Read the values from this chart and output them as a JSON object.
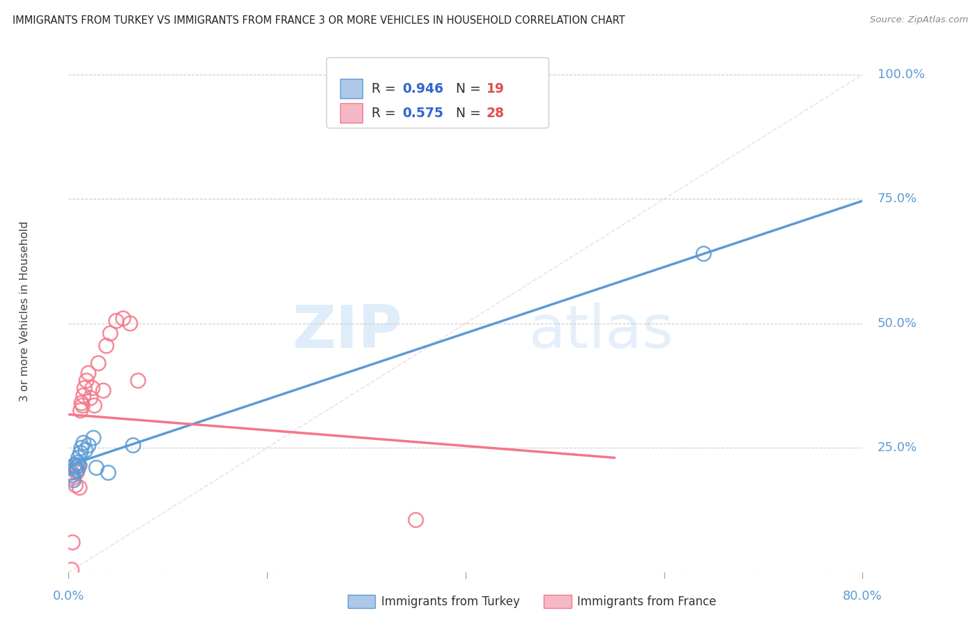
{
  "title": "IMMIGRANTS FROM TURKEY VS IMMIGRANTS FROM FRANCE 3 OR MORE VEHICLES IN HOUSEHOLD CORRELATION CHART",
  "source": "Source: ZipAtlas.com",
  "ylabel": "3 or more Vehicles in Household",
  "xlim": [
    0.0,
    0.8
  ],
  "ylim": [
    0.0,
    1.05
  ],
  "turkey_color": "#5b9bd5",
  "france_color": "#f4768a",
  "turkey_R": "0.946",
  "turkey_N": "19",
  "france_R": "0.575",
  "france_N": "28",
  "legend_label_turkey": "Immigrants from Turkey",
  "legend_label_france": "Immigrants from France",
  "watermark_zip": "ZIP",
  "watermark_atlas": "atlas",
  "background_color": "#ffffff",
  "grid_color": "#cccccc",
  "label_color": "#5b9bd5",
  "title_color": "#222222",
  "source_color": "#888888",
  "turkey_x": [
    0.003,
    0.004,
    0.005,
    0.006,
    0.007,
    0.008,
    0.009,
    0.01,
    0.011,
    0.012,
    0.013,
    0.015,
    0.017,
    0.02,
    0.025,
    0.028,
    0.04,
    0.065,
    0.64
  ],
  "turkey_y": [
    0.2,
    0.195,
    0.185,
    0.215,
    0.21,
    0.205,
    0.22,
    0.23,
    0.215,
    0.24,
    0.25,
    0.26,
    0.245,
    0.255,
    0.27,
    0.21,
    0.2,
    0.255,
    0.64
  ],
  "france_x": [
    0.003,
    0.004,
    0.005,
    0.006,
    0.007,
    0.008,
    0.009,
    0.01,
    0.011,
    0.012,
    0.013,
    0.014,
    0.015,
    0.016,
    0.018,
    0.02,
    0.022,
    0.024,
    0.026,
    0.03,
    0.035,
    0.038,
    0.042,
    0.048,
    0.055,
    0.062,
    0.07,
    0.35
  ],
  "france_y": [
    0.005,
    0.06,
    0.19,
    0.215,
    0.175,
    0.2,
    0.205,
    0.215,
    0.17,
    0.325,
    0.34,
    0.335,
    0.355,
    0.37,
    0.385,
    0.4,
    0.35,
    0.37,
    0.335,
    0.42,
    0.365,
    0.455,
    0.48,
    0.505,
    0.51,
    0.5,
    0.385,
    0.105
  ],
  "turkey_line_x": [
    0.0,
    0.8
  ],
  "france_line_x": [
    0.0,
    0.55
  ],
  "diag_color": "#f4b8c8",
  "diag_alpha": 0.5
}
